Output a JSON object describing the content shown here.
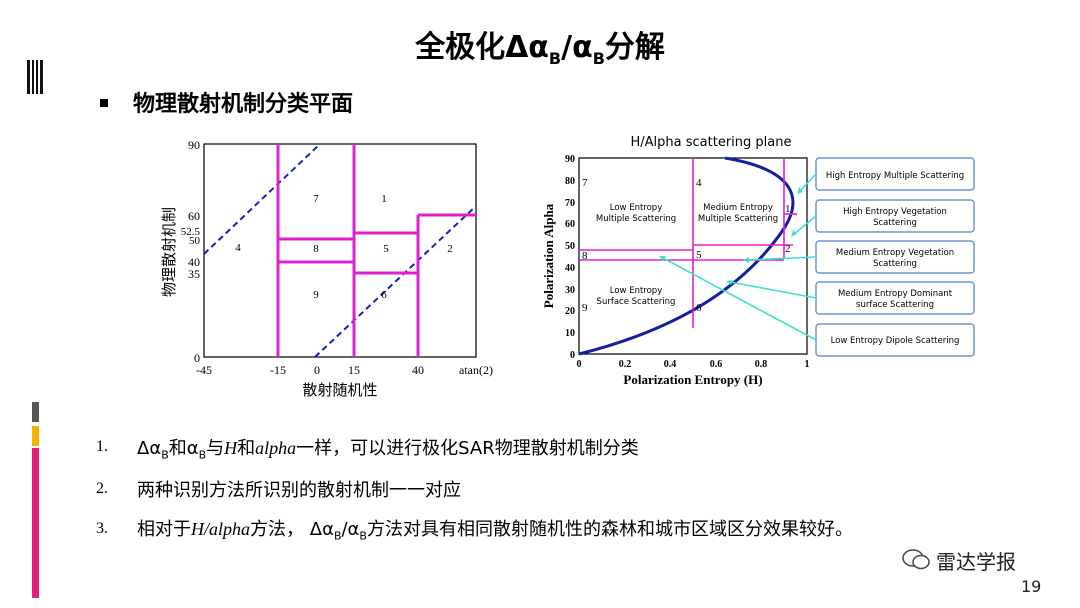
{
  "slide": {
    "title_prefix": "全极化Δα",
    "title_sub1": "B",
    "title_mid": "/α",
    "title_sub2": "B",
    "title_suffix": "分解",
    "bullet": "物理散射机制分类平面",
    "page_number": "19",
    "watermark": "雷达学报"
  },
  "left_plot": {
    "ylabel": "物理散射机制",
    "xlabel": "散射随机性",
    "y_ticks": [
      "90",
      "60",
      "52.5",
      "50",
      "40",
      "35",
      "0"
    ],
    "x_ticks": [
      "-45",
      "-15",
      "0",
      "15",
      "40",
      "atan(2)"
    ],
    "zone_labels": [
      "7",
      "1",
      "4",
      "8",
      "5",
      "2",
      "9",
      "6"
    ],
    "line_color": "#e020d0",
    "dash_color": "#1020c0"
  },
  "right_plot": {
    "title": "H/Alpha scattering plane",
    "ylabel": "Polarization Alpha",
    "xlabel": "Polarization Entropy (H)",
    "y_ticks": [
      "90",
      "80",
      "70",
      "60",
      "50",
      "40",
      "30",
      "20",
      "10",
      "0"
    ],
    "x_ticks": [
      "0",
      "0.2",
      "0.4",
      "0.6",
      "0.8",
      "1"
    ],
    "zone_numbers": [
      "7",
      "4",
      "1",
      "8",
      "5",
      "2",
      "9",
      "6"
    ],
    "region_labels": {
      "low_multi_1": "Low Entropy",
      "low_multi_2": "Multiple Scattering",
      "med_multi_1": "Medium Entropy",
      "med_multi_2": "Multiple Scattering",
      "low_surf_1": "Low Entropy",
      "low_surf_2": "Surface Scattering"
    },
    "callouts": [
      {
        "l1": "High Entropy Multiple Scattering",
        "l2": ""
      },
      {
        "l1": "High Entropy Vegetation",
        "l2": "Scattering"
      },
      {
        "l1": "Medium Entropy Vegetation",
        "l2": "Scattering"
      },
      {
        "l1": "Medium Entropy Dominant",
        "l2": "surface Scattering"
      },
      {
        "l1": "Low Entropy Dipole Scattering",
        "l2": ""
      }
    ]
  },
  "list": [
    {
      "num": "1.",
      "parts": [
        "Δα",
        "B",
        "和α",
        "B",
        "与",
        "H",
        "和",
        "alpha",
        "一样，可以进行极化SAR物理散射机制分类"
      ]
    },
    {
      "num": "2.",
      "text": "两种识别方法所识别的散射机制一一对应"
    },
    {
      "num": "3.",
      "parts": [
        "相对于",
        "H",
        "/",
        "alpha",
        "方法，  Δα",
        "B",
        "/α",
        "B",
        "方法对具有相同散射随机性的森林和城市区域区分效果较好。"
      ]
    }
  ],
  "colors": {
    "accent_pink": "#e0207a",
    "accent_yellow": "#f0b400",
    "accent_gray": "#555555",
    "magenta": "#e020d0",
    "navy": "#1020a0",
    "callout_border": "#4a80c8",
    "cyan_arrow": "#40e0d0"
  }
}
